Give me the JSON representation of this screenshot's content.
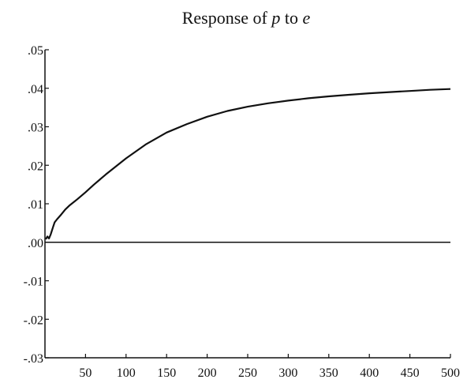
{
  "chart_data": {
    "type": "line",
    "title_prefix": "Response of ",
    "title_var1": "p",
    "title_mid": " to ",
    "title_var2": "e",
    "xlabel": "",
    "ylabel": "",
    "xlim": [
      0,
      500
    ],
    "ylim": [
      -0.03,
      0.05
    ],
    "x_ticks": [
      50,
      100,
      150,
      200,
      250,
      300,
      350,
      400,
      450,
      500
    ],
    "x_tick_labels": [
      "50",
      "100",
      "150",
      "200",
      "250",
      "300",
      "350",
      "400",
      "450",
      "500"
    ],
    "y_ticks": [
      -0.03,
      -0.02,
      -0.01,
      0.0,
      0.01,
      0.02,
      0.03,
      0.04,
      0.05
    ],
    "y_tick_labels": [
      "-.03",
      "-.02",
      "-.01",
      ".00",
      ".01",
      ".02",
      ".03",
      ".04",
      ".05"
    ],
    "zero_line": true,
    "grid": false,
    "series": [
      {
        "x": [
          1,
          3,
          5,
          7,
          10,
          12,
          15,
          20,
          25,
          30,
          40,
          50,
          60,
          75,
          100,
          125,
          150,
          175,
          200,
          225,
          250,
          275,
          300,
          325,
          350,
          375,
          400,
          425,
          450,
          475,
          500
        ],
        "values": [
          0.0008,
          0.0015,
          0.001,
          0.002,
          0.004,
          0.0052,
          0.006,
          0.0072,
          0.0085,
          0.0095,
          0.0112,
          0.013,
          0.0149,
          0.0176,
          0.0218,
          0.0255,
          0.0285,
          0.0307,
          0.0326,
          0.0341,
          0.0352,
          0.0361,
          0.0368,
          0.0374,
          0.0379,
          0.0383,
          0.0387,
          0.039,
          0.0393,
          0.0396,
          0.0398
        ],
        "color": "#111111"
      }
    ]
  }
}
